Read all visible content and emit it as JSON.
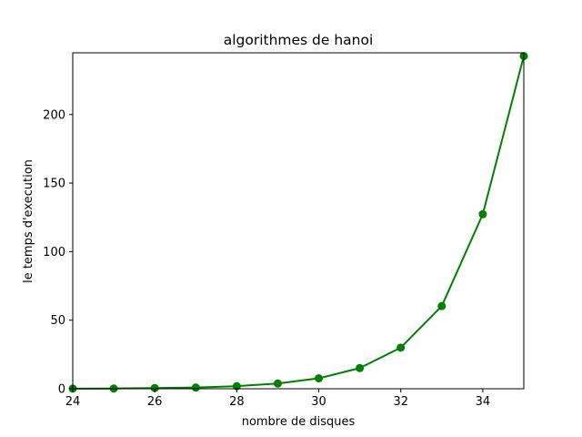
{
  "chart_data": {
    "type": "line",
    "title": "algorithmes de hanoi",
    "xlabel": "nombre de disques",
    "ylabel": "le temps d'execution",
    "xlim": [
      24,
      35
    ],
    "ylim": [
      0,
      245
    ],
    "xticks": [
      24,
      26,
      28,
      30,
      32,
      34
    ],
    "yticks": [
      0,
      50,
      100,
      150,
      200
    ],
    "grid": false,
    "series": [
      {
        "color": "#008000",
        "marker": "circle",
        "x": [
          24,
          25,
          26,
          27,
          28,
          29,
          30,
          31,
          32,
          33,
          34,
          35
        ],
        "y": [
          0.1,
          0.2,
          0.5,
          0.9,
          1.9,
          3.8,
          7.6,
          15.1,
          30.0,
          60.3,
          127.3,
          242.6
        ]
      }
    ]
  }
}
